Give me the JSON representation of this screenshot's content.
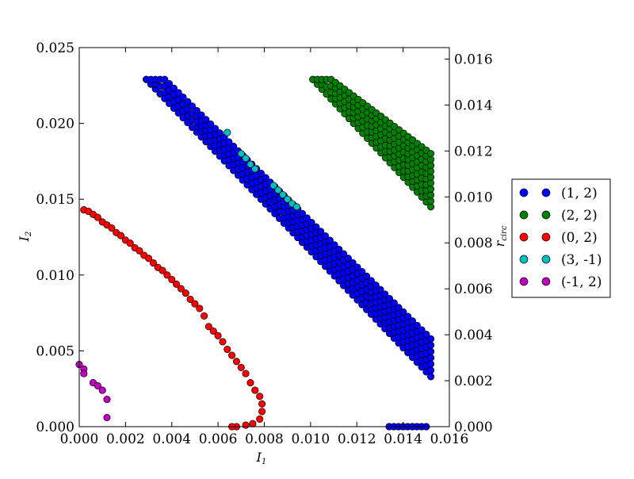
{
  "chart_data": {
    "type": "scatter",
    "xlabel": "I",
    "xlabel_sub": "1",
    "ylabel": "I",
    "ylabel_sub": "2",
    "y2label": "r",
    "y2label_sub": "circ",
    "xlim": [
      0.0,
      0.016
    ],
    "ylim": [
      0.0,
      0.025
    ],
    "y2lim": [
      0.0,
      0.0165
    ],
    "x_ticks": [
      "0.000",
      "0.002",
      "0.004",
      "0.006",
      "0.008",
      "0.010",
      "0.012",
      "0.014",
      "0.016"
    ],
    "y_ticks": [
      "0.000",
      "0.005",
      "0.010",
      "0.015",
      "0.020",
      "0.025"
    ],
    "y2_ticks": [
      "0.000",
      "0.002",
      "0.004",
      "0.006",
      "0.008",
      "0.010",
      "0.012",
      "0.014",
      "0.016"
    ],
    "grid": false,
    "legend_position": "right",
    "series": [
      {
        "name": "(1, 2)",
        "color": "#0000ff",
        "bands": [
          {
            "x": [
              0.0029,
              0.0152
            ],
            "y_top": [
              0.0229,
              0.0046
            ],
            "y_bottom": [
              0.0229,
              0.0033
            ],
            "y_top_cap": 0.0229
          },
          {
            "x": [
              0.0134,
              0.015
            ],
            "y_top": [
              0.0,
              0.0
            ],
            "y_bottom": [
              0.0,
              0.0
            ]
          }
        ]
      },
      {
        "name": "(2, 2)",
        "color": "#008000",
        "bands": [
          {
            "x": [
              0.0101,
              0.0152
            ],
            "y_top": [
              0.0229,
              0.0171
            ],
            "y_bottom": [
              0.0229,
              0.0145
            ],
            "y_top_cap": 0.0229
          }
        ]
      },
      {
        "name": "(0, 2)",
        "color": "#ff0000",
        "points": [
          [
            0.0002,
            0.0143
          ],
          [
            0.0004,
            0.0142
          ],
          [
            0.0006,
            0.014
          ],
          [
            0.0008,
            0.0138
          ],
          [
            0.001,
            0.0135
          ],
          [
            0.0012,
            0.0133
          ],
          [
            0.0014,
            0.0131
          ],
          [
            0.0016,
            0.0128
          ],
          [
            0.0018,
            0.0126
          ],
          [
            0.002,
            0.0123
          ],
          [
            0.0022,
            0.0121
          ],
          [
            0.0024,
            0.0118
          ],
          [
            0.0026,
            0.0116
          ],
          [
            0.0028,
            0.0113
          ],
          [
            0.003,
            0.0111
          ],
          [
            0.0032,
            0.0108
          ],
          [
            0.0034,
            0.0105
          ],
          [
            0.0036,
            0.0103
          ],
          [
            0.0038,
            0.01
          ],
          [
            0.004,
            0.0097
          ],
          [
            0.0042,
            0.0094
          ],
          [
            0.0044,
            0.0091
          ],
          [
            0.0046,
            0.0088
          ],
          [
            0.0048,
            0.0084
          ],
          [
            0.005,
            0.0081
          ],
          [
            0.0052,
            0.0078
          ],
          [
            0.0054,
            0.0073
          ],
          [
            0.0056,
            0.0066
          ],
          [
            0.0058,
            0.0063
          ],
          [
            0.006,
            0.006
          ],
          [
            0.0062,
            0.0056
          ],
          [
            0.0064,
            0.0051
          ],
          [
            0.0066,
            0.0047
          ],
          [
            0.0068,
            0.0043
          ],
          [
            0.007,
            0.0039
          ],
          [
            0.0072,
            0.0035
          ],
          [
            0.0074,
            0.0029
          ],
          [
            0.0076,
            0.0024
          ],
          [
            0.0078,
            0.002
          ],
          [
            0.0079,
            0.0015
          ],
          [
            0.0079,
            0.001
          ],
          [
            0.0078,
            0.0005
          ],
          [
            0.0075,
            0.0002
          ],
          [
            0.0072,
            0.0001
          ],
          [
            0.0068,
            0.0
          ],
          [
            0.0066,
            0.0
          ]
        ]
      },
      {
        "name": "(3, -1)",
        "color": "#00bfbf",
        "points": [
          [
            0.0064,
            0.0194
          ],
          [
            0.007,
            0.018
          ],
          [
            0.0072,
            0.0177
          ],
          [
            0.0074,
            0.0173
          ],
          [
            0.0076,
            0.017
          ],
          [
            0.0084,
            0.0159
          ],
          [
            0.0086,
            0.0156
          ],
          [
            0.0088,
            0.0153
          ],
          [
            0.009,
            0.015
          ],
          [
            0.0092,
            0.0147
          ],
          [
            0.0094,
            0.0145
          ]
        ]
      },
      {
        "name": "(-1, 2)",
        "color": "#bf00bf",
        "points": [
          [
            0.0,
            0.0041
          ],
          [
            0.0002,
            0.0038
          ],
          [
            0.0002,
            0.0035
          ],
          [
            0.0006,
            0.0029
          ],
          [
            0.0008,
            0.0027
          ],
          [
            0.001,
            0.0024
          ],
          [
            0.0012,
            0.0018
          ],
          [
            0.0012,
            0.0006
          ]
        ]
      }
    ]
  }
}
